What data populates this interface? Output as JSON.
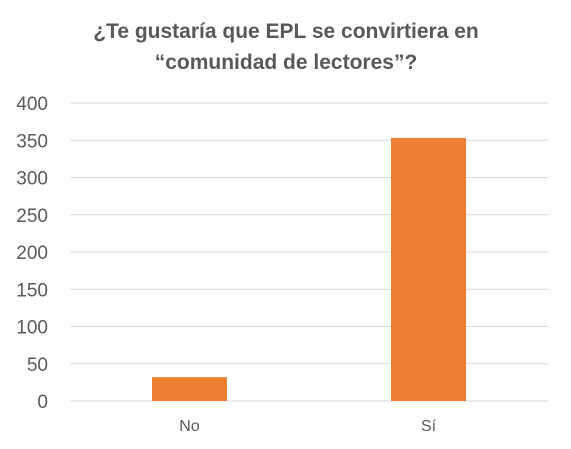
{
  "chart_data": {
    "type": "bar",
    "title_lines": [
      "¿Te gustaría que EPL se convirtiera en",
      "“comunidad de lectores”?"
    ],
    "categories": [
      "No",
      "Sí"
    ],
    "values": [
      32,
      353
    ],
    "ylim": [
      0,
      400
    ],
    "yticks": [
      "400",
      "350",
      "300",
      "250",
      "200",
      "150",
      "100",
      "50",
      "0"
    ],
    "grid": true,
    "legend": "none",
    "bar_color": "#ED7D31",
    "grid_color": "#D9D9D9",
    "text_color": "#595959"
  }
}
